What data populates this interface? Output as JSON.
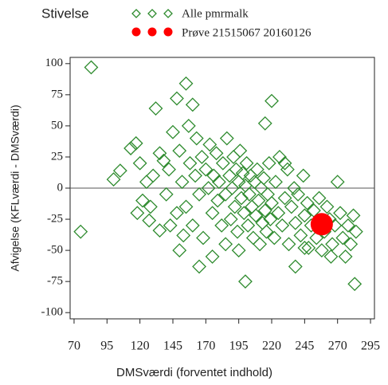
{
  "chart_data": {
    "type": "scatter",
    "title": "Stivelse",
    "x_label": "DMSværdi (forventet indhold)",
    "y_label": "Afvigelse (KFLværdi - DMSværdi)",
    "xlim": [
      67,
      298
    ],
    "ylim": [
      -105,
      105
    ],
    "xticks": [
      70,
      95,
      120,
      145,
      170,
      195,
      220,
      245,
      270,
      295
    ],
    "yticks": [
      100,
      75,
      50,
      25,
      0,
      -25,
      -50,
      -75,
      -100
    ],
    "reference_line": 0,
    "series": [
      {
        "name": "Alle pmrmalk",
        "color": "#2e8b2e",
        "marker": "diamond",
        "x": [
          83,
          75,
          100,
          105,
          113,
          117,
          155,
          160,
          132,
          148,
          220,
          215,
          283,
          200,
          165,
          238,
          150,
          135,
          127,
          120,
          122,
          125,
          130,
          135,
          140,
          142,
          145,
          148,
          150,
          152,
          155,
          157,
          158,
          160,
          162,
          163,
          165,
          167,
          168,
          170,
          172,
          173,
          175,
          176,
          178,
          179,
          180,
          182,
          183,
          185,
          186,
          188,
          189,
          190,
          191,
          192,
          193,
          194,
          195,
          196,
          197,
          198,
          199,
          200,
          201,
          202,
          203,
          204,
          205,
          206,
          207,
          208,
          209,
          210,
          211,
          212,
          213,
          214,
          215,
          216,
          217,
          218,
          219,
          220,
          222,
          223,
          225,
          226,
          228,
          230,
          232,
          233,
          235,
          237,
          238,
          240,
          242,
          244,
          245,
          247,
          248,
          250,
          252,
          254,
          256,
          258,
          260,
          262,
          264,
          266,
          268,
          270,
          272,
          274,
          276,
          278,
          280,
          282,
          284,
          118,
          128,
          138,
          143,
          153,
          185,
          195,
          175,
          245,
          265,
          230
        ],
        "values": [
          97,
          -35,
          7,
          14,
          32,
          36,
          84,
          67,
          64,
          72,
          70,
          52,
          -77,
          -75,
          -63,
          -63,
          -50,
          -34,
          -26,
          20,
          -10,
          5,
          10,
          28,
          -5,
          15,
          45,
          -20,
          30,
          5,
          -15,
          50,
          20,
          -30,
          10,
          40,
          -5,
          25,
          -40,
          15,
          0,
          35,
          -20,
          10,
          28,
          -10,
          5,
          -30,
          20,
          -5,
          40,
          10,
          -25,
          0,
          25,
          -15,
          15,
          -35,
          5,
          30,
          -8,
          12,
          -20,
          2,
          20,
          -30,
          -5,
          10,
          -15,
          -40,
          5,
          -22,
          15,
          -10,
          -45,
          0,
          -28,
          8,
          -18,
          -35,
          -5,
          20,
          -25,
          -12,
          -40,
          5,
          -20,
          25,
          -30,
          -8,
          15,
          -45,
          -15,
          0,
          -28,
          -5,
          -38,
          10,
          -22,
          -12,
          -48,
          -30,
          -18,
          -40,
          -8,
          -50,
          -35,
          -15,
          -25,
          -45,
          -30,
          5,
          -20,
          -40,
          -55,
          -30,
          -45,
          -22,
          -35,
          -20,
          -15,
          22,
          -30,
          -38,
          -45,
          -50,
          -55,
          -48,
          -55,
          20
        ]
      },
      {
        "name": "Prøve 21515067 20160126",
        "color": "#ff0000",
        "marker": "circle",
        "x": [
          258
        ],
        "values": [
          -29
        ]
      }
    ]
  }
}
